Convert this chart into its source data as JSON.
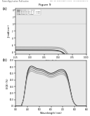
{
  "header_left": "Patent Application Publication",
  "header_right": "Mar. 00, 2019 Sheet 7 of 00   US 0000000000 A1",
  "figure_label": "Figure 9",
  "panel_a_label": "(a)",
  "panel_b_label": "(b)",
  "panel_a_xlabel": "V (volts)",
  "panel_a_ylabel": "J (mA/cm²)",
  "panel_a_xlim": [
    -0.25,
    1.0
  ],
  "panel_a_ylim": [
    -8.5,
    4.5
  ],
  "panel_a_xticks": [
    -0.25,
    0.0,
    0.25,
    0.5,
    0.75,
    1.0
  ],
  "panel_a_xtick_labels": [
    "-0.25",
    "0.00",
    "0.25",
    "0.50",
    "0.75",
    "1.000"
  ],
  "panel_a_yticks": [
    -8.0,
    -6.0,
    -4.0,
    -2.0,
    0.0,
    2.0,
    4.0
  ],
  "panel_b_xlabel": "Wavelength (nm)",
  "panel_b_ylabel": "EQE (%)",
  "panel_b_xlim": [
    300,
    900
  ],
  "panel_b_ylim": [
    0,
    70
  ],
  "panel_b_xticks": [
    300,
    400,
    500,
    600,
    700,
    800,
    900
  ],
  "panel_b_yticks": [
    0.0,
    10.0,
    20.0,
    30.0,
    40.0,
    50.0,
    60.0,
    70.0
  ],
  "panel_b_ytick_labels": [
    "0.0",
    "10.0",
    "20.0",
    "30.0",
    "40.0",
    "50.0",
    "60.0",
    "70.0"
  ],
  "jv_legend_labels": [
    "reference: η = 3.1%",
    "annealing 100°C: η = 3.2%",
    "annealing 150°C: η = 2.5%",
    "solution: η = 2.5%"
  ],
  "jv_colors": [
    "#111111",
    "#444444",
    "#777777",
    "#999999"
  ],
  "eqe_colors": [
    "#111111",
    "#444444",
    "#777777",
    "#999999"
  ],
  "bg_color": "#ffffff",
  "plot_bg_color": "#e8e8e8"
}
